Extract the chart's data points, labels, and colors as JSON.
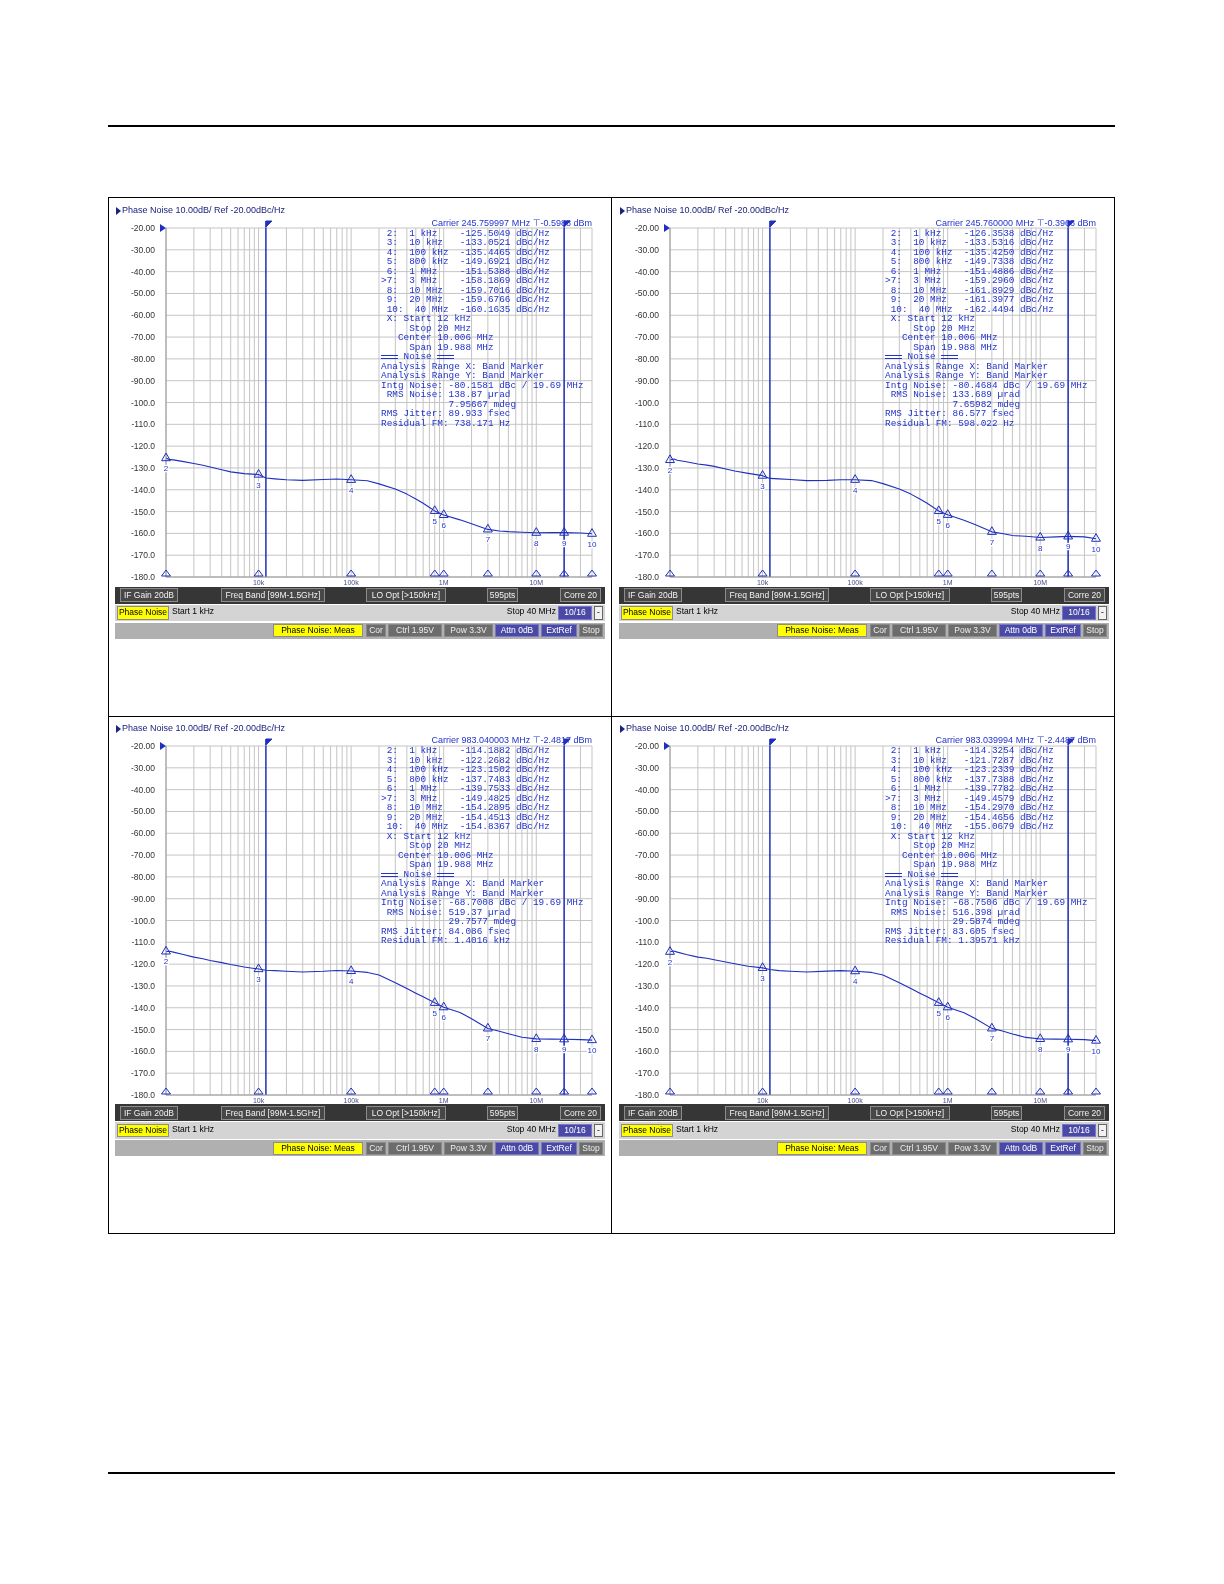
{
  "chart_data": [
    {
      "type": "line",
      "title": "Phase Noise 10.00dB/ Ref -20.00dBc/Hz",
      "subtitle": "Carrier 245.759997 MHz ⊤-0.5988 dBm",
      "log": "x",
      "grid": true,
      "xlim": [
        1000,
        40000000
      ],
      "xticks": [
        {
          "value": 1000,
          "label": null
        },
        {
          "value": 2000,
          "label": null
        },
        {
          "value": 3000,
          "label": null
        },
        {
          "value": 4000,
          "label": null
        },
        {
          "value": 5000,
          "label": null
        },
        {
          "value": 6000,
          "label": null
        },
        {
          "value": 7000,
          "label": null
        },
        {
          "value": 8000,
          "label": null
        },
        {
          "value": 9000,
          "label": null
        },
        {
          "value": 10000,
          "label": "10k"
        },
        {
          "value": 20000,
          "label": null
        },
        {
          "value": 30000,
          "label": null
        },
        {
          "value": 40000,
          "label": null
        },
        {
          "value": 50000,
          "label": null
        },
        {
          "value": 60000,
          "label": null
        },
        {
          "value": 70000,
          "label": null
        },
        {
          "value": 80000,
          "label": null
        },
        {
          "value": 90000,
          "label": null
        },
        {
          "value": 100000,
          "label": "100k"
        },
        {
          "value": 200000,
          "label": null
        },
        {
          "value": 300000,
          "label": null
        },
        {
          "value": 400000,
          "label": null
        },
        {
          "value": 500000,
          "label": null
        },
        {
          "value": 600000,
          "label": null
        },
        {
          "value": 700000,
          "label": null
        },
        {
          "value": 800000,
          "label": null
        },
        {
          "value": 900000,
          "label": null
        },
        {
          "value": 1000000,
          "label": "1M"
        },
        {
          "value": 2000000,
          "label": null
        },
        {
          "value": 3000000,
          "label": null
        },
        {
          "value": 4000000,
          "label": null
        },
        {
          "value": 5000000,
          "label": null
        },
        {
          "value": 6000000,
          "label": null
        },
        {
          "value": 7000000,
          "label": null
        },
        {
          "value": 8000000,
          "label": null
        },
        {
          "value": 9000000,
          "label": null
        },
        {
          "value": 10000000,
          "label": "10M"
        },
        {
          "value": 20000000,
          "label": null
        },
        {
          "value": 30000000,
          "label": null
        },
        {
          "value": 40000000,
          "label": null
        }
      ],
      "ylim": [
        -180,
        -20
      ],
      "yticks": [
        {
          "value": -20,
          "label": "-20.00"
        },
        {
          "value": -30,
          "label": "-30.00"
        },
        {
          "value": -40,
          "label": "-40.00"
        },
        {
          "value": -50,
          "label": "-50.00"
        },
        {
          "value": -60,
          "label": "-60.00"
        },
        {
          "value": -70,
          "label": "-70.00"
        },
        {
          "value": -80,
          "label": "-80.00"
        },
        {
          "value": -90,
          "label": "-90.00"
        },
        {
          "value": -100,
          "label": "-100.0"
        },
        {
          "value": -110,
          "label": "-110.0"
        },
        {
          "value": -120,
          "label": "-120.0"
        },
        {
          "value": -130,
          "label": "-130.0"
        },
        {
          "value": -140,
          "label": "-140.0"
        },
        {
          "value": -150,
          "label": "-150.0"
        },
        {
          "value": -160,
          "label": "-160.0"
        },
        {
          "value": -170,
          "label": "-170.0"
        },
        {
          "value": -180,
          "label": "-180.0"
        }
      ],
      "series": [
        {
          "type": "line",
          "color": "#1f2fbf",
          "x": [
            1000,
            1100,
            1200,
            1500,
            2000,
            2500,
            3000,
            4000,
            5000,
            7000,
            10000,
            12000,
            15000,
            20000,
            30000,
            50000,
            70000,
            100000,
            150000,
            200000,
            300000,
            400000,
            500000,
            600000,
            800000,
            1000000,
            1500000,
            2000000,
            3000000,
            4000000,
            5000000,
            7000000,
            10000000,
            15000000,
            20000000,
            30000000,
            40000000
          ],
          "values": [
            -125.5049,
            -126.2,
            -126.3,
            -127.0,
            -128.0,
            -128.8,
            -129.6,
            -130.8,
            -131.8,
            -132.6,
            -133.0521,
            -134.6,
            -135.0,
            -135.4,
            -135.7,
            -135.3,
            -135.1,
            -135.4465,
            -135.9,
            -137.3,
            -139.7,
            -142.0,
            -144.2,
            -146.2,
            -149.6921,
            -151.5388,
            -153.8,
            -155.6,
            -158.1869,
            -158.9,
            -159.2,
            -159.5,
            -159.7016,
            -159.6,
            -159.6766,
            -159.8,
            -160.1635
          ]
        },
        {
          "type": "scatter",
          "marker": "triangle",
          "color": "#1f2fbf",
          "x": [
            1000,
            10000,
            100000,
            800000,
            1000000,
            3000000,
            10000000,
            20000000,
            40000000
          ],
          "values": [
            -125.5049,
            -133.0521,
            -135.4465,
            -149.6921,
            -151.5388,
            -158.1869,
            -159.7016,
            -159.6766,
            -160.1635
          ]
        }
      ],
      "ref_lines": [
        {
          "axis": "x",
          "value": 12000,
          "color": "#1f2fbf"
        },
        {
          "axis": "x",
          "value": 20000000,
          "color": "#1f2fbf"
        }
      ],
      "annotations": [
        "2:  1 kHz    -125.5049 dBc/Hz",
        "3:  10 kHz   -133.0521 dBc/Hz",
        "4:  100 kHz  -135.4465 dBc/Hz",
        "5:  800 kHz  -149.6921 dBc/Hz",
        "6:  1 MHz    -151.5388 dBc/Hz",
        ">7:  3 MHz    -158.1869 dBc/Hz",
        "8:  10 MHz   -159.7016 dBc/Hz",
        "9:  20 MHz   -159.6766 dBc/Hz",
        "10:  40 MHz  -160.1635 dBc/Hz",
        "X: Start 12 kHz",
        "Stop 20 MHz",
        "Center 10.006 MHz",
        "Span 19.988 MHz",
        "Noise",
        "Analysis Range X: Band Marker",
        "Analysis Range Y: Band Marker",
        "Intg Noise: -80.1581 dBc / 19.69 MHz",
        "RMS Noise: 138.87 µrad",
        "7.95667 mdeg",
        "RMS Jitter: 89.933 fsec",
        "Residual FM: 738.171 Hz",
        "IF Gain 20dB",
        "Freq Band [99M-1.5GHz]",
        "LO Opt [>150kHz]",
        "595pts",
        "Corre 20",
        "Phase Noise",
        "Start 1 kHz",
        "Stop 40 MHz",
        "10/16",
        "-",
        "Phase Noise: Meas",
        "Cor",
        "Ctrl 1.95V",
        "Pow 3.3V",
        "Attn 0dB",
        "ExtRef",
        "Stop",
        {
          "text": "2",
          "x": 1000,
          "y": -125.5049
        },
        {
          "text": "3",
          "x": 10000,
          "y": -133.0521
        },
        {
          "text": "4",
          "x": 100000,
          "y": -135.4465
        },
        {
          "text": "5",
          "x": 800000,
          "y": -149.6921
        },
        {
          "text": "6",
          "x": 1000000,
          "y": -151.5388
        },
        {
          "text": "7",
          "x": 3000000,
          "y": -158.1869
        },
        {
          "text": "8",
          "x": 10000000,
          "y": -159.7016
        },
        {
          "text": "9",
          "x": 20000000,
          "y": -159.6766
        },
        {
          "text": "10",
          "x": 40000000,
          "y": -160.1635
        }
      ]
    },
    {
      "type": "line",
      "title": "Phase Noise 10.00dB/ Ref -20.00dBc/Hz",
      "subtitle": "Carrier 245.760000 MHz ⊤-0.3966 dBm",
      "log": "x",
      "grid": true,
      "xlim": [
        1000,
        40000000
      ],
      "xticks": [
        {
          "value": 1000,
          "label": null
        },
        {
          "value": 2000,
          "label": null
        },
        {
          "value": 3000,
          "label": null
        },
        {
          "value": 4000,
          "label": null
        },
        {
          "value": 5000,
          "label": null
        },
        {
          "value": 6000,
          "label": null
        },
        {
          "value": 7000,
          "label": null
        },
        {
          "value": 8000,
          "label": null
        },
        {
          "value": 9000,
          "label": null
        },
        {
          "value": 10000,
          "label": "10k"
        },
        {
          "value": 20000,
          "label": null
        },
        {
          "value": 30000,
          "label": null
        },
        {
          "value": 40000,
          "label": null
        },
        {
          "value": 50000,
          "label": null
        },
        {
          "value": 60000,
          "label": null
        },
        {
          "value": 70000,
          "label": null
        },
        {
          "value": 80000,
          "label": null
        },
        {
          "value": 90000,
          "label": null
        },
        {
          "value": 100000,
          "label": "100k"
        },
        {
          "value": 200000,
          "label": null
        },
        {
          "value": 300000,
          "label": null
        },
        {
          "value": 400000,
          "label": null
        },
        {
          "value": 500000,
          "label": null
        },
        {
          "value": 600000,
          "label": null
        },
        {
          "value": 700000,
          "label": null
        },
        {
          "value": 800000,
          "label": null
        },
        {
          "value": 900000,
          "label": null
        },
        {
          "value": 1000000,
          "label": "1M"
        },
        {
          "value": 2000000,
          "label": null
        },
        {
          "value": 3000000,
          "label": null
        },
        {
          "value": 4000000,
          "label": null
        },
        {
          "value": 5000000,
          "label": null
        },
        {
          "value": 6000000,
          "label": null
        },
        {
          "value": 7000000,
          "label": null
        },
        {
          "value": 8000000,
          "label": null
        },
        {
          "value": 9000000,
          "label": null
        },
        {
          "value": 10000000,
          "label": "10M"
        },
        {
          "value": 20000000,
          "label": null
        },
        {
          "value": 30000000,
          "label": null
        },
        {
          "value": 40000000,
          "label": null
        }
      ],
      "ylim": [
        -180,
        -20
      ],
      "yticks": [
        {
          "value": -20,
          "label": "-20.00"
        },
        {
          "value": -30,
          "label": "-30.00"
        },
        {
          "value": -40,
          "label": "-40.00"
        },
        {
          "value": -50,
          "label": "-50.00"
        },
        {
          "value": -60,
          "label": "-60.00"
        },
        {
          "value": -70,
          "label": "-70.00"
        },
        {
          "value": -80,
          "label": "-80.00"
        },
        {
          "value": -90,
          "label": "-90.00"
        },
        {
          "value": -100,
          "label": "-100.0"
        },
        {
          "value": -110,
          "label": "-110.0"
        },
        {
          "value": -120,
          "label": "-120.0"
        },
        {
          "value": -130,
          "label": "-130.0"
        },
        {
          "value": -140,
          "label": "-140.0"
        },
        {
          "value": -150,
          "label": "-150.0"
        },
        {
          "value": -160,
          "label": "-160.0"
        },
        {
          "value": -170,
          "label": "-170.0"
        },
        {
          "value": -180,
          "label": "-180.0"
        }
      ],
      "series": [
        {
          "type": "line",
          "color": "#1f2fbf",
          "x": [
            1000,
            1100,
            1200,
            1500,
            2000,
            2500,
            3000,
            4000,
            5000,
            7000,
            10000,
            12000,
            15000,
            20000,
            30000,
            50000,
            70000,
            100000,
            150000,
            200000,
            300000,
            400000,
            500000,
            600000,
            800000,
            1000000,
            1500000,
            2000000,
            3000000,
            4000000,
            5000000,
            7000000,
            10000000,
            15000000,
            20000000,
            30000000,
            40000000
          ],
          "values": [
            -126.3538,
            -125.9,
            -126.5,
            -127.2,
            -128.2,
            -128.7,
            -129.3,
            -130.5,
            -131.4,
            -132.5,
            -133.5316,
            -134.8,
            -135.0,
            -135.3,
            -135.8,
            -135.7,
            -135.4,
            -135.425,
            -135.8,
            -137.2,
            -139.7,
            -142.0,
            -144.2,
            -146.2,
            -149.7338,
            -151.4886,
            -154.0,
            -156.0,
            -159.296,
            -160.2,
            -161.0,
            -161.3,
            -161.8929,
            -161.6,
            -161.3977,
            -161.6,
            -162.4494
          ]
        },
        {
          "type": "scatter",
          "marker": "triangle",
          "color": "#1f2fbf",
          "x": [
            1000,
            10000,
            100000,
            800000,
            1000000,
            3000000,
            10000000,
            20000000,
            40000000
          ],
          "values": [
            -126.3538,
            -133.5316,
            -135.425,
            -149.7338,
            -151.4886,
            -159.296,
            -161.8929,
            -161.3977,
            -162.4494
          ]
        }
      ],
      "ref_lines": [
        {
          "axis": "x",
          "value": 12000,
          "color": "#1f2fbf"
        },
        {
          "axis": "x",
          "value": 20000000,
          "color": "#1f2fbf"
        }
      ],
      "annotations": [
        "2:  1 kHz    -126.3538 dBc/Hz",
        "3:  10 kHz   -133.5316 dBc/Hz",
        "4:  100 kHz  -135.4250 dBc/Hz",
        "5:  800 kHz  -149.7338 dBc/Hz",
        "6:  1 MHz    -151.4886 dBc/Hz",
        ">7:  3 MHz    -159.2960 dBc/Hz",
        "8:  10 MHz   -161.8929 dBc/Hz",
        "9:  20 MHz   -161.3977 dBc/Hz",
        "10:  40 MHz  -162.4494 dBc/Hz",
        "X: Start 12 kHz",
        "Stop 20 MHz",
        "Center 10.006 MHz",
        "Span 19.988 MHz",
        "Noise",
        "Analysis Range X: Band Marker",
        "Analysis Range Y: Band Marker",
        "Intg Noise: -80.4684 dBc / 19.69 MHz",
        "RMS Noise: 133.689 µrad",
        "7.65982 mdeg",
        "RMS Jitter: 86.577 fsec",
        "Residual FM: 598.022 Hz",
        "IF Gain 20dB",
        "Freq Band [99M-1.5GHz]",
        "LO Opt [>150kHz]",
        "595pts",
        "Corre 20",
        "Phase Noise",
        "Start 1 kHz",
        "Stop 40 MHz",
        "10/16",
        "-",
        "Phase Noise: Meas",
        "Cor",
        "Ctrl 1.95V",
        "Pow 3.3V",
        "Attn 0dB",
        "ExtRef",
        "Stop",
        {
          "text": "2",
          "x": 1000,
          "y": -126.3538
        },
        {
          "text": "3",
          "x": 10000,
          "y": -133.5316
        },
        {
          "text": "4",
          "x": 100000,
          "y": -135.425
        },
        {
          "text": "5",
          "x": 800000,
          "y": -149.7338
        },
        {
          "text": "6",
          "x": 1000000,
          "y": -151.4886
        },
        {
          "text": "7",
          "x": 3000000,
          "y": -159.296
        },
        {
          "text": "8",
          "x": 10000000,
          "y": -161.8929
        },
        {
          "text": "9",
          "x": 20000000,
          "y": -161.3977
        },
        {
          "text": "10",
          "x": 40000000,
          "y": -162.4494
        }
      ]
    },
    {
      "type": "line",
      "title": "Phase Noise 10.00dB/ Ref -20.00dBc/Hz",
      "subtitle": "Carrier 983.040003 MHz ⊤-2.4817 dBm",
      "log": "x",
      "grid": true,
      "xlim": [
        1000,
        40000000
      ],
      "xticks": [
        {
          "value": 1000,
          "label": null
        },
        {
          "value": 2000,
          "label": null
        },
        {
          "value": 3000,
          "label": null
        },
        {
          "value": 4000,
          "label": null
        },
        {
          "value": 5000,
          "label": null
        },
        {
          "value": 6000,
          "label": null
        },
        {
          "value": 7000,
          "label": null
        },
        {
          "value": 8000,
          "label": null
        },
        {
          "value": 9000,
          "label": null
        },
        {
          "value": 10000,
          "label": "10k"
        },
        {
          "value": 20000,
          "label": null
        },
        {
          "value": 30000,
          "label": null
        },
        {
          "value": 40000,
          "label": null
        },
        {
          "value": 50000,
          "label": null
        },
        {
          "value": 60000,
          "label": null
        },
        {
          "value": 70000,
          "label": null
        },
        {
          "value": 80000,
          "label": null
        },
        {
          "value": 90000,
          "label": null
        },
        {
          "value": 100000,
          "label": "100k"
        },
        {
          "value": 200000,
          "label": null
        },
        {
          "value": 300000,
          "label": null
        },
        {
          "value": 400000,
          "label": null
        },
        {
          "value": 500000,
          "label": null
        },
        {
          "value": 600000,
          "label": null
        },
        {
          "value": 700000,
          "label": null
        },
        {
          "value": 800000,
          "label": null
        },
        {
          "value": 900000,
          "label": null
        },
        {
          "value": 1000000,
          "label": "1M"
        },
        {
          "value": 2000000,
          "label": null
        },
        {
          "value": 3000000,
          "label": null
        },
        {
          "value": 4000000,
          "label": null
        },
        {
          "value": 5000000,
          "label": null
        },
        {
          "value": 6000000,
          "label": null
        },
        {
          "value": 7000000,
          "label": null
        },
        {
          "value": 8000000,
          "label": null
        },
        {
          "value": 9000000,
          "label": null
        },
        {
          "value": 10000000,
          "label": "10M"
        },
        {
          "value": 20000000,
          "label": null
        },
        {
          "value": 30000000,
          "label": null
        },
        {
          "value": 40000000,
          "label": null
        }
      ],
      "ylim": [
        -180,
        -20
      ],
      "yticks": [
        {
          "value": -20,
          "label": "-20.00"
        },
        {
          "value": -30,
          "label": "-30.00"
        },
        {
          "value": -40,
          "label": "-40.00"
        },
        {
          "value": -50,
          "label": "-50.00"
        },
        {
          "value": -60,
          "label": "-60.00"
        },
        {
          "value": -70,
          "label": "-70.00"
        },
        {
          "value": -80,
          "label": "-80.00"
        },
        {
          "value": -90,
          "label": "-90.00"
        },
        {
          "value": -100,
          "label": "-100.0"
        },
        {
          "value": -110,
          "label": "-110.0"
        },
        {
          "value": -120,
          "label": "-120.0"
        },
        {
          "value": -130,
          "label": "-130.0"
        },
        {
          "value": -140,
          "label": "-140.0"
        },
        {
          "value": -150,
          "label": "-150.0"
        },
        {
          "value": -160,
          "label": "-160.0"
        },
        {
          "value": -170,
          "label": "-170.0"
        },
        {
          "value": -180,
          "label": "-180.0"
        }
      ],
      "series": [
        {
          "type": "line",
          "color": "#1f2fbf",
          "x": [
            1000,
            1100,
            1200,
            1500,
            2000,
            2500,
            3000,
            4000,
            5000,
            7000,
            10000,
            12000,
            15000,
            20000,
            30000,
            50000,
            70000,
            100000,
            150000,
            200000,
            300000,
            400000,
            500000,
            600000,
            800000,
            1000000,
            1500000,
            2000000,
            3000000,
            4000000,
            5000000,
            7000000,
            10000000,
            15000000,
            20000000,
            30000000,
            40000000
          ],
          "values": [
            -114.1882,
            -114.1,
            -114.5,
            -115.5,
            -116.8,
            -117.5,
            -118.3,
            -119.3,
            -120.2,
            -121.3,
            -122.2682,
            -122.8,
            -123.0,
            -123.3,
            -123.6,
            -123.3,
            -122.9,
            -123.1502,
            -123.8,
            -125.0,
            -128.5,
            -131.2,
            -133.3,
            -135.0,
            -137.7483,
            -139.7533,
            -142.2,
            -145.0,
            -149.4825,
            -150.8,
            -151.9,
            -153.5,
            -154.2895,
            -154.4,
            -154.4513,
            -154.6,
            -154.8367
          ]
        },
        {
          "type": "scatter",
          "marker": "triangle",
          "color": "#1f2fbf",
          "x": [
            1000,
            10000,
            100000,
            800000,
            1000000,
            3000000,
            10000000,
            20000000,
            40000000
          ],
          "values": [
            -114.1882,
            -122.2682,
            -123.1502,
            -137.7483,
            -139.7533,
            -149.4825,
            -154.2895,
            -154.4513,
            -154.8367
          ]
        }
      ],
      "ref_lines": [
        {
          "axis": "x",
          "value": 12000,
          "color": "#1f2fbf"
        },
        {
          "axis": "x",
          "value": 20000000,
          "color": "#1f2fbf"
        }
      ],
      "annotations": [
        "2:  1 kHz    -114.1882 dBc/Hz",
        "3:  10 kHz   -122.2682 dBc/Hz",
        "4:  100 kHz  -123.1502 dBc/Hz",
        "5:  800 kHz  -137.7483 dBc/Hz",
        "6:  1 MHz    -139.7533 dBc/Hz",
        ">7:  3 MHz    -149.4825 dBc/Hz",
        "8:  10 MHz   -154.2895 dBc/Hz",
        "9:  20 MHz   -154.4513 dBc/Hz",
        "10:  40 MHz  -154.8367 dBc/Hz",
        "X: Start 12 kHz",
        "Stop 20 MHz",
        "Center 10.006 MHz",
        "Span 19.988 MHz",
        "Noise",
        "Analysis Range X: Band Marker",
        "Analysis Range Y: Band Marker",
        "Intg Noise: -68.7008 dBc / 19.69 MHz",
        "RMS Noise: 519.37 µrad",
        "29.7577 mdeg",
        "RMS Jitter: 84.086 fsec",
        "Residual FM: 1.4016 kHz",
        "IF Gain 20dB",
        "Freq Band [99M-1.5GHz]",
        "LO Opt [>150kHz]",
        "595pts",
        "Corre 20",
        "Phase Noise",
        "Start 1 kHz",
        "Stop 40 MHz",
        "10/16",
        "-",
        "Phase Noise: Meas",
        "Cor",
        "Ctrl 1.95V",
        "Pow 3.3V",
        "Attn 0dB",
        "ExtRef",
        "Stop",
        {
          "text": "2",
          "x": 1000,
          "y": -114.1882
        },
        {
          "text": "3",
          "x": 10000,
          "y": -122.2682
        },
        {
          "text": "4",
          "x": 100000,
          "y": -123.1502
        },
        {
          "text": "5",
          "x": 800000,
          "y": -137.7483
        },
        {
          "text": "6",
          "x": 1000000,
          "y": -139.7533
        },
        {
          "text": "7",
          "x": 3000000,
          "y": -149.4825
        },
        {
          "text": "8",
          "x": 10000000,
          "y": -154.2895
        },
        {
          "text": "9",
          "x": 20000000,
          "y": -154.4513
        },
        {
          "text": "10",
          "x": 40000000,
          "y": -154.8367
        }
      ]
    },
    {
      "type": "line",
      "title": "Phase Noise 10.00dB/ Ref -20.00dBc/Hz",
      "subtitle": "Carrier 983.039994 MHz ⊤-2.4487 dBm",
      "log": "x",
      "grid": true,
      "xlim": [
        1000,
        40000000
      ],
      "xticks": [
        {
          "value": 1000,
          "label": null
        },
        {
          "value": 2000,
          "label": null
        },
        {
          "value": 3000,
          "label": null
        },
        {
          "value": 4000,
          "label": null
        },
        {
          "value": 5000,
          "label": null
        },
        {
          "value": 6000,
          "label": null
        },
        {
          "value": 7000,
          "label": null
        },
        {
          "value": 8000,
          "label": null
        },
        {
          "value": 9000,
          "label": null
        },
        {
          "value": 10000,
          "label": "10k"
        },
        {
          "value": 20000,
          "label": null
        },
        {
          "value": 30000,
          "label": null
        },
        {
          "value": 40000,
          "label": null
        },
        {
          "value": 50000,
          "label": null
        },
        {
          "value": 60000,
          "label": null
        },
        {
          "value": 70000,
          "label": null
        },
        {
          "value": 80000,
          "label": null
        },
        {
          "value": 90000,
          "label": null
        },
        {
          "value": 100000,
          "label": "100k"
        },
        {
          "value": 200000,
          "label": null
        },
        {
          "value": 300000,
          "label": null
        },
        {
          "value": 400000,
          "label": null
        },
        {
          "value": 500000,
          "label": null
        },
        {
          "value": 600000,
          "label": null
        },
        {
          "value": 700000,
          "label": null
        },
        {
          "value": 800000,
          "label": null
        },
        {
          "value": 900000,
          "label": null
        },
        {
          "value": 1000000,
          "label": "1M"
        },
        {
          "value": 2000000,
          "label": null
        },
        {
          "value": 3000000,
          "label": null
        },
        {
          "value": 4000000,
          "label": null
        },
        {
          "value": 5000000,
          "label": null
        },
        {
          "value": 6000000,
          "label": null
        },
        {
          "value": 7000000,
          "label": null
        },
        {
          "value": 8000000,
          "label": null
        },
        {
          "value": 9000000,
          "label": null
        },
        {
          "value": 10000000,
          "label": "10M"
        },
        {
          "value": 20000000,
          "label": null
        },
        {
          "value": 30000000,
          "label": null
        },
        {
          "value": 40000000,
          "label": null
        }
      ],
      "ylim": [
        -180,
        -20
      ],
      "yticks": [
        {
          "value": -20,
          "label": "-20.00"
        },
        {
          "value": -30,
          "label": "-30.00"
        },
        {
          "value": -40,
          "label": "-40.00"
        },
        {
          "value": -50,
          "label": "-50.00"
        },
        {
          "value": -60,
          "label": "-60.00"
        },
        {
          "value": -70,
          "label": "-70.00"
        },
        {
          "value": -80,
          "label": "-80.00"
        },
        {
          "value": -90,
          "label": "-90.00"
        },
        {
          "value": -100,
          "label": "-100.0"
        },
        {
          "value": -110,
          "label": "-110.0"
        },
        {
          "value": -120,
          "label": "-120.0"
        },
        {
          "value": -130,
          "label": "-130.0"
        },
        {
          "value": -140,
          "label": "-140.0"
        },
        {
          "value": -150,
          "label": "-150.0"
        },
        {
          "value": -160,
          "label": "-160.0"
        },
        {
          "value": -170,
          "label": "-170.0"
        },
        {
          "value": -180,
          "label": "-180.0"
        }
      ],
      "series": [
        {
          "type": "line",
          "color": "#1f2fbf",
          "x": [
            1000,
            1100,
            1200,
            1500,
            2000,
            2500,
            3000,
            4000,
            5000,
            7000,
            10000,
            12000,
            15000,
            20000,
            30000,
            50000,
            70000,
            100000,
            150000,
            200000,
            300000,
            400000,
            500000,
            600000,
            800000,
            1000000,
            1500000,
            2000000,
            3000000,
            4000000,
            5000000,
            7000000,
            10000000,
            15000000,
            20000000,
            30000000,
            40000000
          ],
          "values": [
            -114.3254,
            -114.0,
            -114.5,
            -115.6,
            -116.8,
            -117.3,
            -118.0,
            -119.0,
            -119.8,
            -121.0,
            -121.7287,
            -122.5,
            -123.0,
            -123.3,
            -123.6,
            -123.2,
            -123.0,
            -123.2339,
            -123.8,
            -125.0,
            -128.5,
            -131.2,
            -133.3,
            -135.0,
            -137.7388,
            -139.7782,
            -142.3,
            -145.0,
            -149.4579,
            -150.8,
            -152.0,
            -153.6,
            -154.297,
            -154.4,
            -154.4656,
            -154.6,
            -155.0679
          ]
        },
        {
          "type": "scatter",
          "marker": "triangle",
          "color": "#1f2fbf",
          "x": [
            1000,
            10000,
            100000,
            800000,
            1000000,
            3000000,
            10000000,
            20000000,
            40000000
          ],
          "values": [
            -114.3254,
            -121.7287,
            -123.2339,
            -137.7388,
            -139.7782,
            -149.4579,
            -154.297,
            -154.4656,
            -155.0679
          ]
        }
      ],
      "ref_lines": [
        {
          "axis": "x",
          "value": 12000,
          "color": "#1f2fbf"
        },
        {
          "axis": "x",
          "value": 20000000,
          "color": "#1f2fbf"
        }
      ],
      "annotations": [
        "2:  1 kHz    -114.3254 dBc/Hz",
        "3:  10 kHz   -121.7287 dBc/Hz",
        "4:  100 kHz  -123.2339 dBc/Hz",
        "5:  800 kHz  -137.7388 dBc/Hz",
        "6:  1 MHz    -139.7782 dBc/Hz",
        ">7:  3 MHz    -149.4579 dBc/Hz",
        "8:  10 MHz   -154.2970 dBc/Hz",
        "9:  20 MHz   -154.4656 dBc/Hz",
        "10:  40 MHz  -155.0679 dBc/Hz",
        "X: Start 12 kHz",
        "Stop 20 MHz",
        "Center 10.006 MHz",
        "Span 19.988 MHz",
        "Noise",
        "Analysis Range X: Band Marker",
        "Analysis Range Y: Band Marker",
        "Intg Noise: -68.7506 dBc / 19.69 MHz",
        "RMS Noise: 516.398 µrad",
        "29.5874 mdeg",
        "RMS Jitter: 83.605 fsec",
        "Residual FM: 1.39571 kHz",
        "IF Gain 20dB",
        "Freq Band [99M-1.5GHz]",
        "LO Opt [>150kHz]",
        "595pts",
        "Corre 20",
        "Phase Noise",
        "Start 1 kHz",
        "Stop 40 MHz",
        "10/16",
        "-",
        "Phase Noise: Meas",
        "Cor",
        "Ctrl 1.95V",
        "Pow 3.3V",
        "Attn 0dB",
        "ExtRef",
        "Stop",
        {
          "text": "2",
          "x": 1000,
          "y": -114.3254
        },
        {
          "text": "3",
          "x": 10000,
          "y": -121.7287
        },
        {
          "text": "4",
          "x": 100000,
          "y": -123.2339
        },
        {
          "text": "5",
          "x": 800000,
          "y": -137.7388
        },
        {
          "text": "6",
          "x": 1000000,
          "y": -139.7782
        },
        {
          "text": "7",
          "x": 3000000,
          "y": -149.4579
        },
        {
          "text": "8",
          "x": 10000000,
          "y": -154.297
        },
        {
          "text": "9",
          "x": 20000000,
          "y": -154.4656
        },
        {
          "text": "10",
          "x": 40000000,
          "y": -155.0679
        }
      ]
    }
  ]
}
